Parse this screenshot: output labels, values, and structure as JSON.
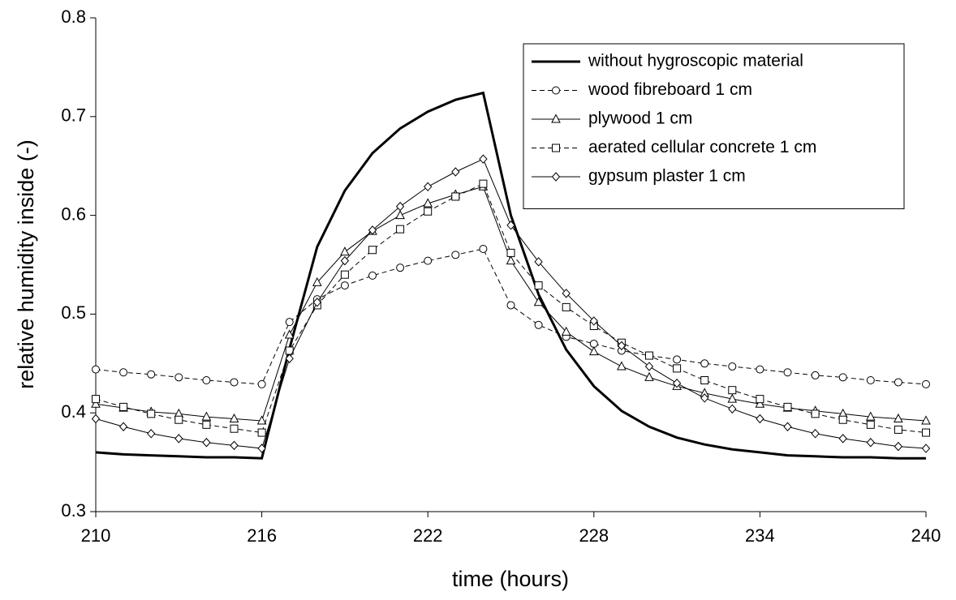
{
  "chart_data": {
    "type": "line",
    "x_label": "time (hours)",
    "y_label": "relative humidity inside (-)",
    "x": [
      210,
      211,
      212,
      213,
      214,
      215,
      216,
      217,
      218,
      219,
      220,
      221,
      222,
      223,
      224,
      225,
      226,
      227,
      228,
      229,
      230,
      231,
      232,
      233,
      234,
      235,
      236,
      237,
      238,
      239,
      240
    ],
    "xlim": [
      210,
      240
    ],
    "xticks": [
      210,
      216,
      222,
      228,
      234,
      240
    ],
    "ylim": [
      0.3,
      0.8
    ],
    "yticks": [
      0.3,
      0.4,
      0.5,
      0.6,
      0.7,
      0.8
    ],
    "grid": false,
    "legend": "top-right",
    "series": [
      {
        "name": "without hygroscopic material",
        "color": "#000000",
        "marker": "none",
        "dash": "solid",
        "width": 3,
        "values": [
          0.36,
          0.358,
          0.357,
          0.356,
          0.355,
          0.355,
          0.354,
          0.465,
          0.568,
          0.625,
          0.663,
          0.688,
          0.705,
          0.717,
          0.724,
          0.6,
          0.52,
          0.464,
          0.427,
          0.402,
          0.386,
          0.375,
          0.368,
          0.363,
          0.36,
          0.357,
          0.356,
          0.355,
          0.355,
          0.354,
          0.354
        ]
      },
      {
        "name": "wood fibreboard 1 cm",
        "color": "#000000",
        "marker": "circle",
        "dash": "dashed",
        "width": 1,
        "values": [
          0.444,
          0.441,
          0.439,
          0.436,
          0.433,
          0.431,
          0.429,
          0.492,
          0.515,
          0.529,
          0.539,
          0.547,
          0.554,
          0.56,
          0.566,
          0.509,
          0.489,
          0.477,
          0.47,
          0.463,
          0.458,
          0.454,
          0.45,
          0.447,
          0.444,
          0.441,
          0.438,
          0.436,
          0.433,
          0.431,
          0.429
        ]
      },
      {
        "name": "plywood 1 cm",
        "color": "#000000",
        "marker": "triangle",
        "dash": "solid",
        "width": 1,
        "values": [
          0.409,
          0.405,
          0.401,
          0.399,
          0.396,
          0.394,
          0.392,
          0.479,
          0.532,
          0.563,
          0.584,
          0.6,
          0.612,
          0.621,
          0.629,
          0.554,
          0.512,
          0.482,
          0.462,
          0.447,
          0.436,
          0.427,
          0.42,
          0.414,
          0.409,
          0.405,
          0.402,
          0.399,
          0.396,
          0.394,
          0.392
        ]
      },
      {
        "name": "aerated cellular concrete 1 cm",
        "color": "#000000",
        "marker": "square",
        "dash": "dashed",
        "width": 1,
        "values": [
          0.414,
          0.406,
          0.399,
          0.393,
          0.388,
          0.384,
          0.38,
          0.463,
          0.509,
          0.54,
          0.565,
          0.586,
          0.604,
          0.619,
          0.632,
          0.562,
          0.529,
          0.507,
          0.488,
          0.471,
          0.458,
          0.445,
          0.433,
          0.423,
          0.414,
          0.406,
          0.399,
          0.393,
          0.388,
          0.383,
          0.38
        ]
      },
      {
        "name": "gypsum plaster 1 cm",
        "color": "#000000",
        "marker": "diamond",
        "dash": "solid",
        "width": 1,
        "values": [
          0.394,
          0.386,
          0.379,
          0.374,
          0.37,
          0.367,
          0.364,
          0.455,
          0.512,
          0.554,
          0.585,
          0.609,
          0.629,
          0.644,
          0.657,
          0.59,
          0.553,
          0.521,
          0.493,
          0.468,
          0.447,
          0.43,
          0.415,
          0.404,
          0.394,
          0.386,
          0.379,
          0.374,
          0.37,
          0.366,
          0.364
        ]
      }
    ]
  }
}
